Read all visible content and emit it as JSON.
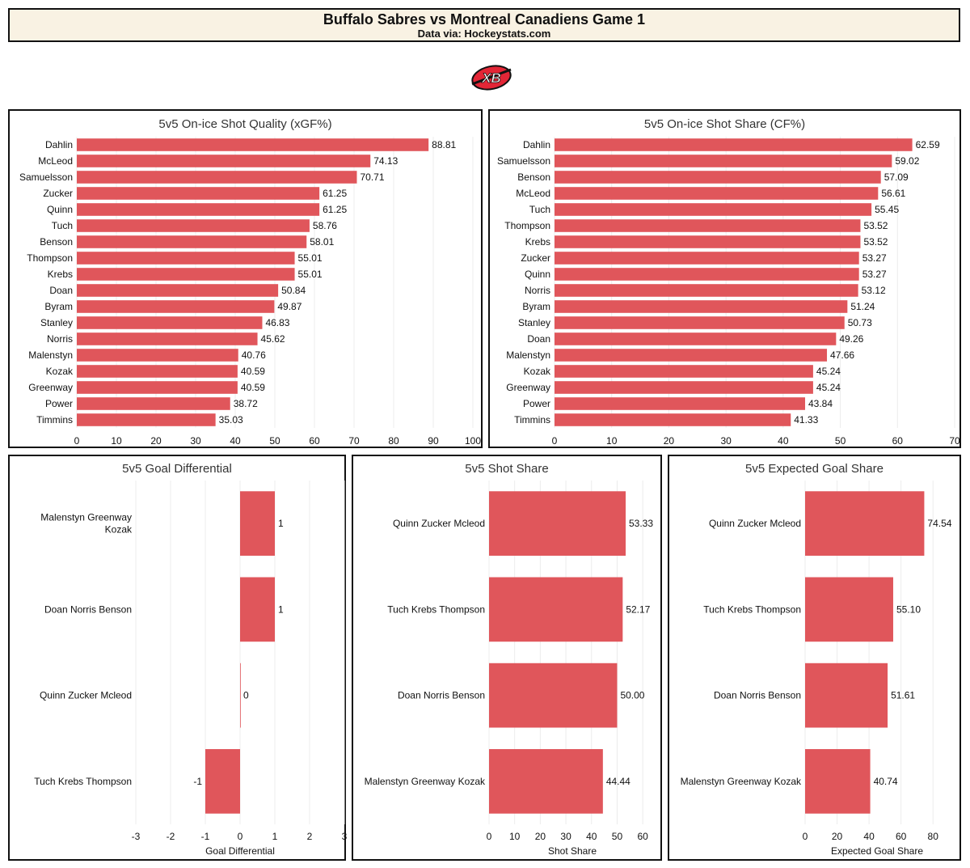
{
  "header": {
    "title": "Buffalo Sabres vs Montreal Canadiens Game 1",
    "subtitle": "Data via: Hockeystats.com"
  },
  "logo": {
    "text": "XB",
    "icon": "sabres-xb-logo"
  },
  "colors": {
    "bar": "#e0565b",
    "header_bg": "#f9f2e3"
  },
  "chart_data": [
    {
      "id": "xgf",
      "type": "bar",
      "orientation": "horizontal",
      "title": "5v5 On-ice Shot Quality (xGF%)",
      "xlabel": "",
      "xlim": [
        0,
        100
      ],
      "xticks": [
        0,
        10,
        20,
        30,
        40,
        50,
        60,
        70,
        80,
        90,
        100
      ],
      "categories": [
        "Dahlin",
        "McLeod",
        "Samuelsson",
        "Zucker",
        "Quinn",
        "Tuch",
        "Benson",
        "Thompson",
        "Krebs",
        "Doan",
        "Byram",
        "Stanley",
        "Norris",
        "Malenstyn",
        "Kozak",
        "Greenway",
        "Power",
        "Timmins"
      ],
      "values": [
        88.81,
        74.13,
        70.71,
        61.25,
        61.25,
        58.76,
        58.01,
        55.01,
        55.01,
        50.84,
        49.87,
        46.83,
        45.62,
        40.76,
        40.59,
        40.59,
        38.72,
        35.03
      ],
      "value_labels": [
        "88.81",
        "74.13",
        "70.71",
        "61.25",
        "61.25",
        "58.76",
        "58.01",
        "55.01",
        "55.01",
        "50.84",
        "49.87",
        "46.83",
        "45.62",
        "40.76",
        "40.59",
        "40.59",
        "38.72",
        "35.03"
      ]
    },
    {
      "id": "cf",
      "type": "bar",
      "orientation": "horizontal",
      "title": "5v5 On-ice Shot Share (CF%)",
      "xlabel": "",
      "xlim": [
        0,
        70
      ],
      "xticks": [
        0,
        10,
        20,
        30,
        40,
        50,
        60,
        70
      ],
      "categories": [
        "Dahlin",
        "Samuelsson",
        "Benson",
        "McLeod",
        "Tuch",
        "Thompson",
        "Krebs",
        "Zucker",
        "Quinn",
        "Norris",
        "Byram",
        "Stanley",
        "Doan",
        "Malenstyn",
        "Kozak",
        "Greenway",
        "Power",
        "Timmins"
      ],
      "values": [
        62.59,
        59.02,
        57.09,
        56.61,
        55.45,
        53.52,
        53.52,
        53.27,
        53.27,
        53.12,
        51.24,
        50.73,
        49.26,
        47.66,
        45.24,
        45.24,
        43.84,
        41.33
      ],
      "value_labels": [
        "62.59",
        "59.02",
        "57.09",
        "56.61",
        "55.45",
        "53.52",
        "53.52",
        "53.27",
        "53.27",
        "53.12",
        "51.24",
        "50.73",
        "49.26",
        "47.66",
        "45.24",
        "45.24",
        "43.84",
        "41.33"
      ]
    },
    {
      "id": "gd",
      "type": "bar",
      "orientation": "horizontal",
      "title": "5v5 Goal Differential",
      "xlabel": "Goal Differential",
      "xlim": [
        -3,
        3
      ],
      "xticks": [
        -3,
        -2,
        -1,
        0,
        1,
        2,
        3
      ],
      "categories": [
        [
          "Malenstyn Greenway",
          "Kozak"
        ],
        [
          "Doan Norris Benson"
        ],
        [
          "Quinn Zucker Mcleod"
        ],
        [
          "Tuch Krebs Thompson"
        ]
      ],
      "values": [
        1,
        1,
        0,
        -1
      ],
      "value_labels": [
        "1",
        "1",
        "0",
        "-1"
      ]
    },
    {
      "id": "ss",
      "type": "bar",
      "orientation": "horizontal",
      "title": "5v5 Shot Share",
      "xlabel": "Shot Share",
      "xlim": [
        0,
        65
      ],
      "xticks": [
        0,
        10,
        20,
        30,
        40,
        50,
        60
      ],
      "categories": [
        [
          "Quinn Zucker Mcleod"
        ],
        [
          "Tuch Krebs Thompson"
        ],
        [
          "Doan Norris Benson"
        ],
        [
          "Malenstyn Greenway Kozak"
        ]
      ],
      "values": [
        53.33,
        52.17,
        50.0,
        44.44
      ],
      "value_labels": [
        "53.33",
        "52.17",
        "50.00",
        "44.44"
      ]
    },
    {
      "id": "egs",
      "type": "bar",
      "orientation": "horizontal",
      "title": "5v5 Expected Goal Share",
      "xlabel": "Expected Goal Share",
      "xlim": [
        0,
        90
      ],
      "xticks": [
        0,
        20,
        40,
        60,
        80
      ],
      "categories": [
        [
          "Quinn Zucker Mcleod"
        ],
        [
          "Tuch Krebs Thompson"
        ],
        [
          "Doan Norris Benson"
        ],
        [
          "Malenstyn Greenway Kozak"
        ]
      ],
      "values": [
        74.54,
        55.1,
        51.61,
        40.74
      ],
      "value_labels": [
        "74.54",
        "55.10",
        "51.61",
        "40.74"
      ]
    }
  ]
}
